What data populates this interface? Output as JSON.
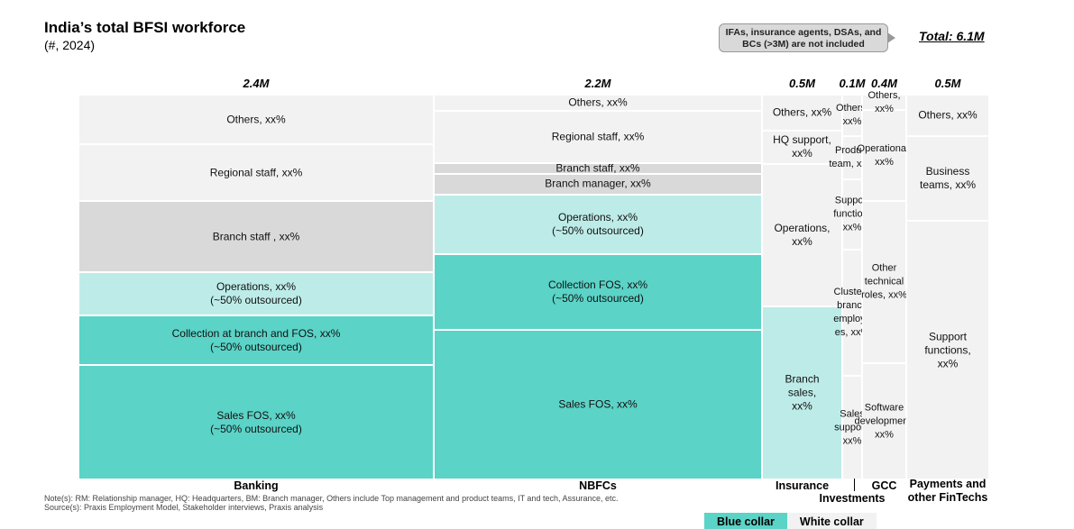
{
  "title": "India’s total BFSI workforce",
  "subtitle": "(#, 2024)",
  "callout": "IFAs, insurance agents, DSAs, and BCs (>3M) are not included",
  "total": "Total: 6.1M",
  "notes": [
    "Note(s): RM: Relationship manager, HQ: Headquarters, BM: Branch manager, Others include Top management and product teams, IT and tech, Assurance, etc.",
    "Source(s): Praxis Employment Model, Stakeholder interviews, Praxis analysis"
  ],
  "legend": [
    {
      "label": "Blue collar",
      "color": "#5BD3C7"
    },
    {
      "label": "White collar",
      "color": "#F2F2F2"
    }
  ],
  "colors": {
    "teal": "#5BD3C7",
    "light_teal": "#BDECE8",
    "gray": "#D9D9D9",
    "light_gray": "#F2F2F2"
  },
  "chart_data": {
    "type": "marimekko",
    "unit": "M",
    "columns": [
      {
        "category": "Banking",
        "value_label": "2.4M",
        "value": 2.4,
        "segments": [
          {
            "label": "Sales FOS, xx%\n(~50% outsourced)",
            "share": 29.7,
            "color": "teal"
          },
          {
            "label": "Collection at branch and FOS, xx%\n(~50% outsourced)",
            "share": 12.9,
            "color": "teal"
          },
          {
            "label": "Operations, xx%\n(~50% outsourced)",
            "share": 11.2,
            "color": "light_teal"
          },
          {
            "label": "Branch staff , xx%",
            "share": 18.5,
            "color": "gray"
          },
          {
            "label": "Regional staff, xx%",
            "share": 14.8,
            "color": "light_gray"
          },
          {
            "label": "Others, xx%",
            "share": 12.9,
            "color": "light_gray"
          }
        ]
      },
      {
        "category": "NBFCs",
        "value_label": "2.2M",
        "value": 2.2,
        "segments": [
          {
            "label": "Sales FOS, xx%",
            "share": 38.9,
            "color": "teal"
          },
          {
            "label": "Collection FOS, xx%\n(~50% outsourced)",
            "share": 19.7,
            "color": "teal"
          },
          {
            "label": "Operations, xx%\n(~50% outsourced)",
            "share": 15.5,
            "color": "light_teal"
          },
          {
            "label": "Branch manager, xx%",
            "share": 5.4,
            "color": "gray"
          },
          {
            "label": "Branch staff, xx%",
            "share": 2.8,
            "color": "gray"
          },
          {
            "label": "Regional staff, xx%",
            "share": 13.6,
            "color": "light_gray"
          },
          {
            "label": "Others, xx%",
            "share": 4.2,
            "color": "light_gray"
          }
        ]
      },
      {
        "category": "Insurance",
        "value_label": "0.5M",
        "value": 0.5,
        "segments": [
          {
            "label": "Branch\nsales,\nxx%",
            "share": 45.0,
            "color": "light_teal"
          },
          {
            "label": "Operations,\nxx%",
            "share": 37.0,
            "color": "light_gray"
          },
          {
            "label": "HQ support,\nxx%",
            "share": 8.7,
            "color": "light_gray"
          },
          {
            "label": "Others, xx%",
            "share": 9.3,
            "color": "light_gray"
          }
        ]
      },
      {
        "category": "Investments",
        "value_label": "0.1M",
        "value": 0.1,
        "segments": [
          {
            "label": "Sales\nsupport,\nxx%",
            "share": 26.9,
            "color": "light_gray"
          },
          {
            "label": "Cluster /\nbranch\nemploye\nes, xx%",
            "share": 32.8,
            "color": "light_gray"
          },
          {
            "label": "Support\nfunction,\nxx%",
            "share": 18.3,
            "color": "light_gray"
          },
          {
            "label": "Product\nteam, xx%",
            "share": 11.3,
            "color": "light_gray"
          },
          {
            "label": "Others,\nxx%",
            "share": 10.7,
            "color": "light_gray"
          }
        ]
      },
      {
        "category": "GCC",
        "value_label": "0.4M",
        "value": 0.4,
        "segments": [
          {
            "label": "Software\ndevelopment,\nxx%",
            "share": 30.2,
            "color": "light_gray"
          },
          {
            "label": "Other\ntechnical\nroles, xx%",
            "share": 42.1,
            "color": "light_gray"
          },
          {
            "label": "Operational,\nxx%",
            "share": 23.7,
            "color": "light_gray"
          },
          {
            "label": "Others,\nxx%",
            "share": 4.0,
            "color": "light_gray"
          }
        ]
      },
      {
        "category": "Payments and\nother FinTechs",
        "value_label": "0.5M",
        "value": 0.5,
        "segments": [
          {
            "label": "Support\nfunctions,\nxx%",
            "share": 67.2,
            "color": "light_gray"
          },
          {
            "label": "Business\nteams, xx%",
            "share": 22.0,
            "color": "light_gray"
          },
          {
            "label": "Others, xx%",
            "share": 10.8,
            "color": "light_gray"
          }
        ]
      }
    ]
  }
}
